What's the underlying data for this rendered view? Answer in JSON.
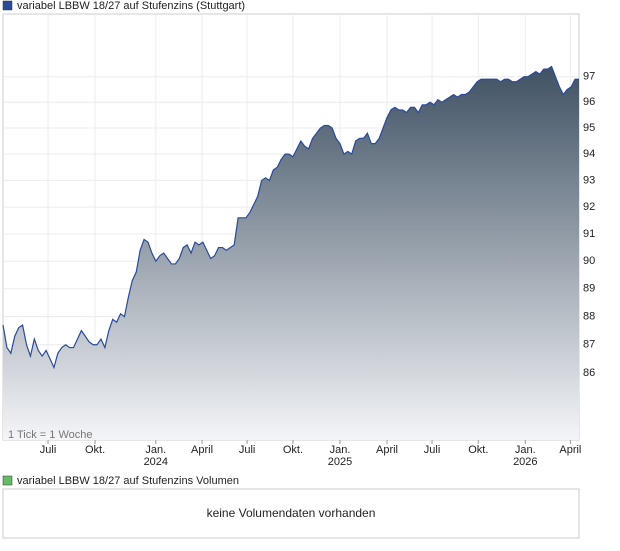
{
  "chart_data": {
    "type": "area",
    "title": "variabel LBBW 18/27 auf Stufenzins (Stuttgart)",
    "note": "1 Tick = 1 Woche",
    "log_scale": true,
    "grid": true,
    "x": [
      0,
      1,
      2,
      3,
      4,
      5,
      6,
      7,
      8,
      9,
      10,
      11,
      12,
      13,
      14,
      15,
      16,
      17,
      18,
      19,
      20,
      21,
      22,
      23,
      24,
      25,
      26,
      27,
      28,
      29,
      30,
      31,
      32,
      33,
      34,
      35,
      36,
      37,
      38,
      39,
      40,
      41,
      42,
      43,
      44,
      45,
      46,
      47,
      48,
      49,
      50,
      51,
      52,
      53,
      54,
      55,
      56,
      57,
      58,
      59,
      60,
      61,
      62,
      63,
      64,
      65,
      66,
      67,
      68,
      69,
      70,
      71,
      72,
      73,
      74,
      75,
      76,
      77,
      78,
      79,
      80,
      81,
      82,
      83,
      84,
      85,
      86,
      87,
      88,
      89,
      90,
      91,
      92,
      93,
      94,
      95,
      96,
      97,
      98,
      99,
      100,
      101,
      102,
      103,
      104,
      105,
      106,
      107,
      108,
      109,
      110,
      111,
      112,
      113,
      114,
      115,
      116,
      117,
      118,
      119,
      120,
      121,
      122,
      123,
      124,
      125,
      126,
      127,
      128,
      129,
      130,
      131,
      132,
      133,
      134,
      135,
      136,
      137,
      138,
      139,
      140,
      141,
      142,
      143,
      144,
      145,
      146,
      147
    ],
    "series": [
      {
        "name": "variabel LBBW 18/27 auf Stufenzins (Stuttgart)",
        "color": "#2a4a9a",
        "values": [
          87.7,
          86.9,
          86.7,
          87.3,
          87.6,
          87.7,
          87.0,
          86.6,
          87.2,
          86.8,
          86.6,
          86.8,
          86.5,
          86.2,
          86.7,
          86.9,
          87.0,
          86.9,
          86.9,
          87.2,
          87.5,
          87.3,
          87.1,
          87.0,
          87.0,
          87.2,
          86.9,
          87.5,
          87.9,
          87.8,
          88.1,
          88.0,
          88.7,
          89.3,
          89.6,
          90.4,
          90.8,
          90.7,
          90.3,
          90.0,
          90.2,
          90.3,
          90.1,
          89.9,
          89.9,
          90.1,
          90.5,
          90.6,
          90.3,
          90.7,
          90.6,
          90.7,
          90.4,
          90.1,
          90.2,
          90.5,
          90.5,
          90.4,
          90.5,
          90.6,
          91.6,
          91.6,
          91.6,
          91.8,
          92.1,
          92.4,
          93.0,
          93.1,
          93.0,
          93.4,
          93.5,
          93.8,
          94.0,
          94.0,
          93.9,
          94.2,
          94.5,
          94.3,
          94.2,
          94.6,
          94.8,
          95.0,
          95.1,
          95.1,
          95.0,
          94.6,
          94.4,
          94.0,
          94.1,
          94.0,
          94.5,
          94.6,
          94.6,
          94.8,
          94.4,
          94.4,
          94.6,
          95.0,
          95.4,
          95.7,
          95.8,
          95.7,
          95.7,
          95.6,
          95.8,
          95.8,
          95.6,
          95.9,
          95.9,
          96.0,
          95.9,
          96.1,
          96.0,
          96.1,
          96.2,
          96.3,
          96.2,
          96.3,
          96.3,
          96.4,
          96.6,
          96.8,
          96.9,
          96.9,
          96.9,
          96.9,
          96.9,
          96.8,
          96.9,
          96.9,
          96.8,
          96.8,
          96.9,
          97.0,
          97.0,
          97.1,
          97.2,
          97.1,
          97.3,
          97.3,
          97.4,
          97.0,
          96.6,
          96.3,
          96.5,
          96.6,
          96.9,
          96.9
        ]
      }
    ],
    "xlim": [
      0,
      147
    ],
    "xticks": [
      {
        "value": 11.5,
        "label": "Juli"
      },
      {
        "value": 23.5,
        "label": "Okt."
      },
      {
        "value": 39,
        "label": "Jan.",
        "year": "2024"
      },
      {
        "value": 50.8,
        "label": "April"
      },
      {
        "value": 62.3,
        "label": "Juli"
      },
      {
        "value": 74,
        "label": "Okt."
      },
      {
        "value": 86,
        "label": "Jan.",
        "year": "2025"
      },
      {
        "value": 98,
        "label": "April"
      },
      {
        "value": 109.5,
        "label": "Juli"
      },
      {
        "value": 121.3,
        "label": "Okt."
      },
      {
        "value": 133.3,
        "label": "Jan.",
        "year": "2026"
      },
      {
        "value": 144.8,
        "label": "April"
      }
    ],
    "ylim": [
      83.7,
      99.5
    ],
    "yticks": [
      86,
      87,
      88,
      89,
      90,
      91,
      92,
      93,
      94,
      95,
      96,
      97
    ],
    "volume": {
      "legend": "variabel LBBW 18/27 auf Stufenzins Volumen",
      "color": "#66bb66",
      "message": "keine Volumendaten vorhanden"
    }
  }
}
